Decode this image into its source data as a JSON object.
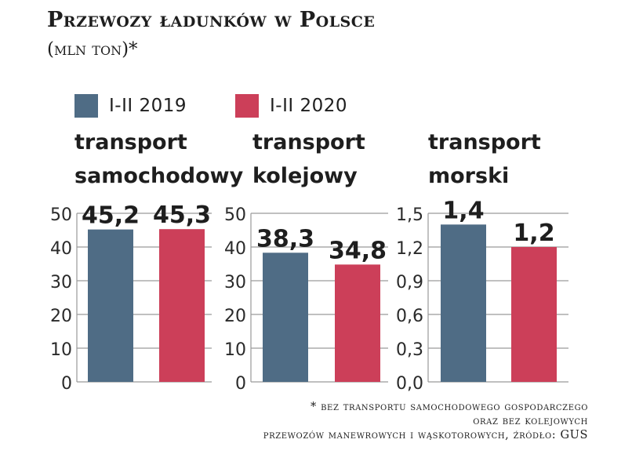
{
  "title": "Przewozy ładunków w Polsce",
  "subtitle": "(mln ton)*",
  "legend": [
    {
      "label": "I-II 2019",
      "color": "#4f6c85"
    },
    {
      "label": "I-II 2020",
      "color": "#cc3f59"
    }
  ],
  "chart_data": [
    {
      "type": "bar",
      "title": [
        "transport",
        "samochodowy"
      ],
      "categories": [
        "I-II 2019",
        "I-II 2020"
      ],
      "values": [
        45.2,
        45.3
      ],
      "value_labels": [
        "45,2",
        "45,3"
      ],
      "ylim": [
        0,
        50
      ],
      "yticks": [
        "0",
        "10",
        "20",
        "30",
        "40",
        "50"
      ],
      "grid": true
    },
    {
      "type": "bar",
      "title": [
        "transport",
        "kolejowy"
      ],
      "categories": [
        "I-II 2019",
        "I-II 2020"
      ],
      "values": [
        38.3,
        34.8
      ],
      "value_labels": [
        "38,3",
        "34,8"
      ],
      "ylim": [
        0,
        50
      ],
      "yticks": [
        "0",
        "10",
        "20",
        "30",
        "40",
        "50"
      ],
      "grid": true
    },
    {
      "type": "bar",
      "title": [
        "transport",
        "morski"
      ],
      "categories": [
        "I-II 2019",
        "I-II 2020"
      ],
      "values": [
        1.4,
        1.2
      ],
      "value_labels": [
        "1,4",
        "1,2"
      ],
      "ylim": [
        0,
        1.5
      ],
      "yticks": [
        "0,0",
        "0,3",
        "0,6",
        "0,9",
        "1,2",
        "1,5"
      ],
      "grid": true
    }
  ],
  "footnote": [
    "* bez transportu samochodowego gospodarczego",
    "oraz bez kolejowych",
    "przewozów manewrowych i wąskotorowych, źródło: GUS"
  ]
}
